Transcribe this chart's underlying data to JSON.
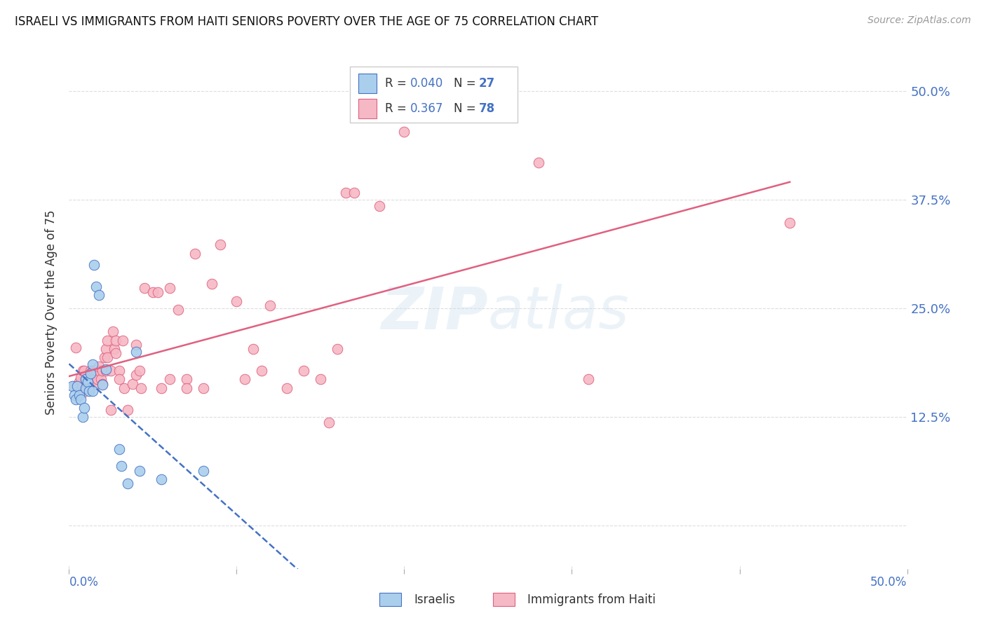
{
  "title": "ISRAELI VS IMMIGRANTS FROM HAITI SENIORS POVERTY OVER THE AGE OF 75 CORRELATION CHART",
  "source": "Source: ZipAtlas.com",
  "ylabel": "Seniors Poverty Over the Age of 75",
  "xlim": [
    0,
    0.5
  ],
  "ylim": [
    -0.05,
    0.54
  ],
  "yticks": [
    0.0,
    0.125,
    0.25,
    0.375,
    0.5
  ],
  "ytick_labels": [
    "",
    "12.5%",
    "25.0%",
    "37.5%",
    "50.0%"
  ],
  "watermark": "ZIPatlas",
  "color_israeli": "#aacfed",
  "color_haiti": "#f5b8c4",
  "trendline_israeli_color": "#4472c4",
  "trendline_haiti_color": "#e06080",
  "israelis_x": [
    0.002,
    0.003,
    0.004,
    0.005,
    0.006,
    0.007,
    0.008,
    0.009,
    0.01,
    0.01,
    0.011,
    0.012,
    0.013,
    0.014,
    0.014,
    0.015,
    0.016,
    0.018,
    0.02,
    0.022,
    0.03,
    0.031,
    0.035,
    0.04,
    0.042,
    0.055,
    0.08
  ],
  "israelis_y": [
    0.16,
    0.15,
    0.145,
    0.16,
    0.15,
    0.145,
    0.125,
    0.135,
    0.158,
    0.168,
    0.165,
    0.155,
    0.175,
    0.185,
    0.155,
    0.3,
    0.275,
    0.265,
    0.162,
    0.18,
    0.088,
    0.068,
    0.048,
    0.2,
    0.063,
    0.053,
    0.063
  ],
  "haiti_x": [
    0.003,
    0.004,
    0.005,
    0.006,
    0.007,
    0.007,
    0.008,
    0.008,
    0.009,
    0.01,
    0.01,
    0.011,
    0.012,
    0.012,
    0.013,
    0.013,
    0.014,
    0.015,
    0.015,
    0.016,
    0.016,
    0.017,
    0.018,
    0.018,
    0.019,
    0.02,
    0.02,
    0.021,
    0.022,
    0.022,
    0.023,
    0.023,
    0.025,
    0.025,
    0.026,
    0.027,
    0.028,
    0.028,
    0.03,
    0.03,
    0.032,
    0.033,
    0.035,
    0.038,
    0.04,
    0.04,
    0.042,
    0.043,
    0.045,
    0.05,
    0.053,
    0.055,
    0.06,
    0.06,
    0.065,
    0.07,
    0.07,
    0.075,
    0.08,
    0.085,
    0.09,
    0.1,
    0.105,
    0.11,
    0.115,
    0.12,
    0.13,
    0.14,
    0.15,
    0.155,
    0.16,
    0.165,
    0.17,
    0.185,
    0.2,
    0.28,
    0.31,
    0.43
  ],
  "haiti_y": [
    0.16,
    0.205,
    0.16,
    0.165,
    0.158,
    0.17,
    0.178,
    0.153,
    0.178,
    0.168,
    0.158,
    0.163,
    0.158,
    0.168,
    0.178,
    0.163,
    0.178,
    0.168,
    0.178,
    0.163,
    0.178,
    0.168,
    0.178,
    0.183,
    0.168,
    0.178,
    0.163,
    0.193,
    0.178,
    0.203,
    0.193,
    0.213,
    0.178,
    0.133,
    0.223,
    0.203,
    0.213,
    0.198,
    0.178,
    0.168,
    0.213,
    0.158,
    0.133,
    0.163,
    0.208,
    0.173,
    0.178,
    0.158,
    0.273,
    0.268,
    0.268,
    0.158,
    0.168,
    0.273,
    0.248,
    0.168,
    0.158,
    0.313,
    0.158,
    0.278,
    0.323,
    0.258,
    0.168,
    0.203,
    0.178,
    0.253,
    0.158,
    0.178,
    0.168,
    0.118,
    0.203,
    0.383,
    0.383,
    0.368,
    0.453,
    0.418,
    0.168,
    0.348
  ],
  "background_color": "#ffffff",
  "grid_color": "#dddddd",
  "legend_r1_label": "R = ",
  "legend_r1_val": "0.040",
  "legend_n1_label": "N = ",
  "legend_n1_val": "27",
  "legend_r2_label": "R = ",
  "legend_r2_val": "0.367",
  "legend_n2_label": "N = ",
  "legend_n2_val": "78",
  "text_color": "#333333",
  "blue_color": "#4472c4",
  "source_color": "#999999"
}
